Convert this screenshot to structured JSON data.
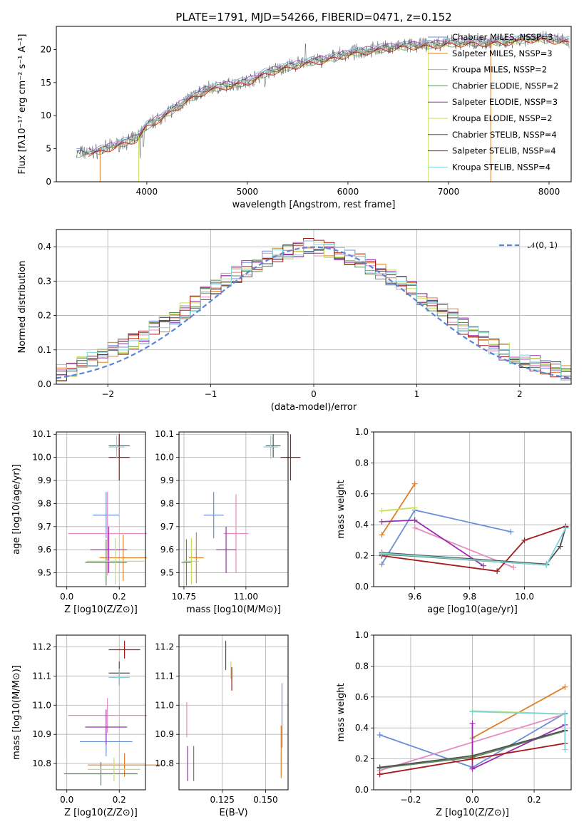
{
  "figure_title": "PLATE=1791, MJD=54266, FIBERID=0471, z=0.152",
  "colors": {
    "chabrier_miles": "#6a8fd8",
    "salpeter_miles": "#e07f2a",
    "kroupa_miles": "#e88bc0",
    "chabrier_elodie": "#5b8a5b",
    "salpeter_elodie": "#9b2fae",
    "kroupa_elodie": "#c7e05a",
    "chabrier_stelib": "#505050",
    "salpeter_stelib": "#a51a1a",
    "kroupa_stelib": "#7fd6d8"
  },
  "chart_data": [
    {
      "type": "line",
      "id": "spectrum",
      "title": "PLATE=1791, MJD=54266, FIBERID=0471, z=0.152",
      "xlabel": "wavelength [Angstrom, rest frame]",
      "ylabel": "Flux [fλ10⁻¹⁷ erg cm⁻² s⁻¹ A⁻¹]",
      "xlim": [
        3100,
        8220
      ],
      "ylim": [
        0,
        23.5
      ],
      "xticks": [
        "4000",
        "5000",
        "6000",
        "7000",
        "8000"
      ],
      "yticks": [
        "0",
        "5",
        "10",
        "15",
        "20"
      ],
      "continuum": {
        "x": [
          3300,
          3500,
          3700,
          3900,
          4000,
          4200,
          4400,
          4600,
          4800,
          5000,
          5200,
          5400,
          5600,
          5800,
          6000,
          6200,
          6400,
          6600,
          6800,
          7000,
          7200,
          7400,
          7600,
          7800,
          8000,
          8200
        ],
        "y": [
          4.3,
          4.6,
          5.6,
          6.6,
          8.5,
          10.3,
          12.4,
          14.0,
          14.6,
          15.2,
          16.6,
          17.4,
          18.1,
          18.6,
          19.4,
          19.9,
          20.3,
          20.6,
          20.7,
          21.0,
          21.1,
          21.1,
          21.3,
          21.7,
          21.6,
          21.2
        ]
      },
      "legend_position": "upper-right",
      "legend": [
        "Chabrier MILES, NSSP=3",
        "Salpeter MILES, NSSP=3",
        "Kroupa MILES, NSSP=2",
        "Chabrier ELODIE, NSSP=2",
        "Salpeter ELODIE, NSSP=3",
        "Kroupa ELODIE, NSSP=2",
        "Chabrier STELIB, NSSP=4",
        "Salpeter STELIB, NSSP=4",
        "Kroupa STELIB, NSSP=4"
      ]
    },
    {
      "type": "histogram",
      "id": "residuals",
      "xlabel": "(data-model)/error",
      "ylabel": "Normed distribution",
      "xlim": [
        -2.5,
        2.5
      ],
      "ylim": [
        0,
        0.45
      ],
      "xticks": [
        "−2",
        "−1",
        "0",
        "1",
        "2"
      ],
      "yticks": [
        "0.0",
        "0.1",
        "0.2",
        "0.3",
        "0.4"
      ],
      "grid": true,
      "legend": [
        "𝒩(0, 1)"
      ],
      "bins": [
        -2.5,
        -2.4,
        -2.3,
        -2.2,
        -2.1,
        -2.0,
        -1.9,
        -1.8,
        -1.7,
        -1.6,
        -1.5,
        -1.4,
        -1.3,
        -1.2,
        -1.1,
        -1.0,
        -0.9,
        -0.8,
        -0.7,
        -0.6,
        -0.5,
        -0.4,
        -0.3,
        -0.2,
        -0.1,
        0.0,
        0.1,
        0.2,
        0.3,
        0.4,
        0.5,
        0.6,
        0.7,
        0.8,
        0.9,
        1.0,
        1.1,
        1.2,
        1.3,
        1.4,
        1.5,
        1.6,
        1.7,
        1.8,
        1.9,
        2.0,
        2.1,
        2.2,
        2.3,
        2.4,
        2.5
      ],
      "series": [
        {
          "values": [
            0.034,
            0.046,
            0.056,
            0.068,
            0.082,
            0.098,
            0.11,
            0.125,
            0.14,
            0.16,
            0.175,
            0.195,
            0.215,
            0.235,
            0.26,
            0.28,
            0.3,
            0.32,
            0.335,
            0.35,
            0.365,
            0.375,
            0.385,
            0.395,
            0.4,
            0.398,
            0.39,
            0.38,
            0.37,
            0.36,
            0.345,
            0.33,
            0.31,
            0.295,
            0.275,
            0.255,
            0.235,
            0.215,
            0.195,
            0.17,
            0.15,
            0.13,
            0.11,
            0.095,
            0.08,
            0.07,
            0.06,
            0.05,
            0.042,
            0.035
          ]
        }
      ],
      "normal_curve": {
        "mean": 0,
        "sd": 1
      }
    },
    {
      "type": "errorbar",
      "id": "age-vs-Z",
      "xlabel": "Z [log10(Z/Z⊙)]",
      "ylabel": "age [log10(age/yr)]",
      "xlim": [
        -0.04,
        0.3
      ],
      "ylim": [
        9.44,
        10.11
      ],
      "xticks": [
        "0.0",
        "0.2"
      ],
      "yticks": [
        "9.5",
        "9.6",
        "9.7",
        "9.8",
        "9.9",
        "10.0",
        "10.1"
      ],
      "points": [
        {
          "x": 0.15,
          "xerr": 0.05,
          "y": 9.75,
          "yerr": 0.1
        },
        {
          "x": 0.215,
          "xerr": 0.09,
          "y": 9.565,
          "yerr": 0.1
        },
        {
          "x": 0.155,
          "xerr": 0.15,
          "y": 9.67,
          "yerr": 0.18
        },
        {
          "x": 0.15,
          "xerr": 0.08,
          "y": 9.545,
          "yerr": 0.1
        },
        {
          "x": 0.16,
          "xerr": 0.07,
          "y": 9.6,
          "yerr": 0.1
        },
        {
          "x": 0.185,
          "xerr": 0.11,
          "y": 9.55,
          "yerr": 0.1
        },
        {
          "x": 0.2,
          "xerr": 0.04,
          "y": 10.05,
          "yerr": 0.05
        },
        {
          "x": 0.2,
          "xerr": 0.04,
          "y": 10.0,
          "yerr": 0.1
        },
        {
          "x": 0.19,
          "xerr": 0.03,
          "y": 10.045,
          "yerr": 0.05
        }
      ]
    },
    {
      "type": "errorbar",
      "id": "age-vs-mass",
      "xlabel": "mass [log10(M/M⊙)]",
      "ylabel": "",
      "xlim": [
        10.73,
        11.17
      ],
      "ylim": [
        9.44,
        10.11
      ],
      "xticks": [
        "10.75",
        "11.00"
      ],
      "yticks": [
        "9.5",
        "9.6",
        "9.7",
        "9.8",
        "9.9",
        "10.0",
        "10.1"
      ],
      "points": [
        {
          "x": 10.87,
          "xerr": 0.04,
          "y": 9.75,
          "yerr": 0.1
        },
        {
          "x": 10.8,
          "xerr": 0.03,
          "y": 9.565,
          "yerr": 0.11
        },
        {
          "x": 10.96,
          "xerr": 0.05,
          "y": 9.67,
          "yerr": 0.17
        },
        {
          "x": 10.76,
          "xerr": 0.02,
          "y": 9.545,
          "yerr": 0.1
        },
        {
          "x": 10.92,
          "xerr": 0.04,
          "y": 9.6,
          "yerr": 0.1
        },
        {
          "x": 10.78,
          "xerr": 0.03,
          "y": 9.55,
          "yerr": 0.1
        },
        {
          "x": 11.11,
          "xerr": 0.03,
          "y": 10.05,
          "yerr": 0.05
        },
        {
          "x": 11.18,
          "xerr": 0.04,
          "y": 10.0,
          "yerr": 0.1
        },
        {
          "x": 11.1,
          "xerr": 0.03,
          "y": 10.045,
          "yerr": 0.05
        }
      ]
    },
    {
      "type": "line",
      "id": "mass-weight-vs-age",
      "xlabel": "age [log10(age/yr)]",
      "ylabel": "mass weight",
      "xlim": [
        9.45,
        10.17
      ],
      "ylim": [
        0,
        1
      ],
      "xticks": [
        "9.6",
        "9.8",
        "10.0"
      ],
      "yticks": [
        "0.0",
        "0.2",
        "0.4",
        "0.6",
        "0.8",
        "1.0"
      ],
      "grid": true,
      "series": [
        {
          "x": [
            9.48,
            9.6,
            9.95
          ],
          "y": [
            0.145,
            0.495,
            0.355
          ]
        },
        {
          "x": [
            9.48,
            9.6
          ],
          "y": [
            0.335,
            0.665
          ]
        },
        {
          "x": [
            9.6,
            9.96
          ],
          "y": [
            0.38,
            0.125
          ]
        },
        {
          "x": [
            9.48,
            10.08
          ],
          "y": [
            0.21,
            0.14
          ]
        },
        {
          "x": [
            9.48,
            9.6,
            9.85
          ],
          "y": [
            0.42,
            0.43,
            0.135
          ]
        },
        {
          "x": [
            9.48,
            9.6
          ],
          "y": [
            0.49,
            0.51
          ]
        },
        {
          "x": [
            9.48,
            10.08,
            10.13,
            10.15
          ],
          "y": [
            0.22,
            0.145,
            0.26,
            0.385
          ]
        },
        {
          "x": [
            9.48,
            9.9,
            10.0,
            10.15
          ],
          "y": [
            0.2,
            0.1,
            0.3,
            0.39
          ]
        },
        {
          "x": [
            9.48,
            10.08,
            10.15
          ],
          "y": [
            0.215,
            0.14,
            0.38
          ]
        }
      ]
    },
    {
      "type": "errorbar",
      "id": "mass-vs-Z",
      "xlabel": "Z [log10(Z/Z⊙)]",
      "ylabel": "mass [log10(M/M⊙)]",
      "xlim": [
        -0.04,
        0.3
      ],
      "ylim": [
        10.71,
        11.24
      ],
      "xticks": [
        "0.0",
        "0.2"
      ],
      "yticks": [
        "10.8",
        "10.9",
        "11.0",
        "11.1",
        "11.2"
      ],
      "points": [
        {
          "x": 0.15,
          "xerr": 0.1,
          "y": 10.875,
          "yerr": 0.05
        },
        {
          "x": 0.22,
          "xerr": 0.14,
          "y": 10.795,
          "yerr": 0.04
        },
        {
          "x": 0.155,
          "xerr": 0.15,
          "y": 10.965,
          "yerr": 0.06
        },
        {
          "x": 0.13,
          "xerr": 0.14,
          "y": 10.765,
          "yerr": 0.04
        },
        {
          "x": 0.15,
          "xerr": 0.08,
          "y": 10.925,
          "yerr": 0.06
        },
        {
          "x": 0.18,
          "xerr": 0.1,
          "y": 10.78,
          "yerr": 0.04
        },
        {
          "x": 0.2,
          "xerr": 0.04,
          "y": 11.11,
          "yerr": 0.04
        },
        {
          "x": 0.22,
          "xerr": 0.06,
          "y": 11.19,
          "yerr": 0.03
        },
        {
          "x": 0.2,
          "xerr": 0.04,
          "y": 11.095,
          "yerr": 0.03
        }
      ]
    },
    {
      "type": "errorbar",
      "id": "mass-vs-ebv",
      "xlabel": "E(B-V)",
      "ylabel": "",
      "xlim": [
        0.1,
        0.163
      ],
      "ylim": [
        10.71,
        11.24
      ],
      "xticks": [
        "0.125",
        "0.150"
      ],
      "yticks": [
        "10.8",
        "10.9",
        "11.0",
        "11.1",
        "11.2"
      ],
      "points": [
        {
          "x": 0.1595,
          "xerr": 0,
          "y": 10.965,
          "yerr": 0.11
        },
        {
          "x": 0.159,
          "xerr": 0,
          "y": 10.84,
          "yerr": 0.09
        },
        {
          "x": 0.1045,
          "xerr": 0,
          "y": 10.95,
          "yerr": 0.06
        },
        {
          "x": 0.1085,
          "xerr": 0,
          "y": 10.8,
          "yerr": 0.06
        },
        {
          "x": 0.105,
          "xerr": 0,
          "y": 10.8,
          "yerr": 0.06
        },
        {
          "x": 0.13,
          "xerr": 0,
          "y": 11.12,
          "yerr": 0.03
        },
        {
          "x": 0.127,
          "xerr": 0,
          "y": 11.17,
          "yerr": 0.05
        },
        {
          "x": 0.1305,
          "xerr": 0,
          "y": 11.09,
          "yerr": 0.04
        }
      ]
    },
    {
      "type": "line",
      "id": "mass-weight-vs-Z",
      "xlabel": "Z [log10(Z/Z⊙)]",
      "ylabel": "mass weight",
      "xlim": [
        -0.32,
        0.32
      ],
      "ylim": [
        0,
        1
      ],
      "xticks": [
        "−0.2",
        "0.0",
        "0.2"
      ],
      "yticks": [
        "0.0",
        "0.2",
        "0.4",
        "0.6",
        "0.8",
        "1.0"
      ],
      "grid": true,
      "series": [
        {
          "x": [
            -0.3,
            0.0,
            0.3
          ],
          "y": [
            0.355,
            0.145,
            0.495
          ]
        },
        {
          "x": [
            0.0,
            0.3
          ],
          "y": [
            0.335,
            0.665
          ]
        },
        {
          "x": [
            -0.3,
            0.3
          ],
          "y": [
            0.125,
            0.49
          ]
        },
        {
          "x": [
            -0.3,
            0.0,
            0.3
          ],
          "y": [
            0.14,
            0.21,
            0.38
          ]
        },
        {
          "x": [
            0.0,
            0.0,
            0.3
          ],
          "y": [
            0.43,
            0.135,
            0.42
          ]
        },
        {
          "x": [
            0.0,
            0.3
          ],
          "y": [
            0.51,
            0.49
          ]
        },
        {
          "x": [
            -0.3,
            0.0,
            0.3
          ],
          "y": [
            0.145,
            0.22,
            0.385
          ]
        },
        {
          "x": [
            -0.3,
            0.0,
            0.3
          ],
          "y": [
            0.1,
            0.2,
            0.3
          ]
        },
        {
          "x": [
            0.0,
            0.3,
            0.3
          ],
          "y": [
            0.505,
            0.49,
            0.26
          ]
        }
      ]
    }
  ]
}
